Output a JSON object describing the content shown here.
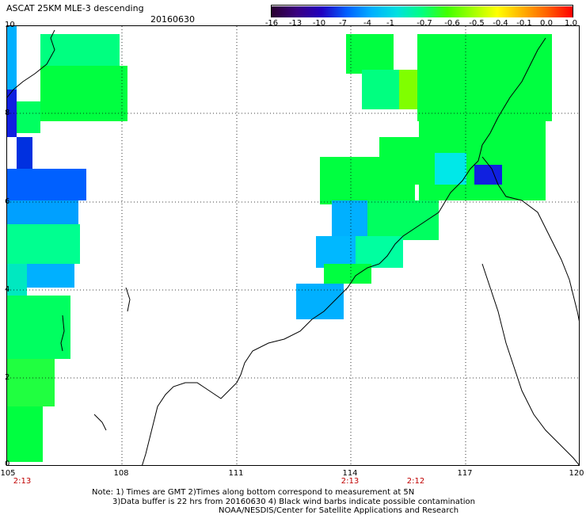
{
  "header": {
    "title": "ASCAT 25KM MLE-3 descending",
    "date": "20160630"
  },
  "colorbar": {
    "labels": [
      "-16",
      "-13",
      "-10",
      "-7",
      "-4",
      "-1",
      "-0.7",
      "-0.6",
      "-0.5",
      "-0.4",
      "-0.1",
      "0.0",
      "1.0"
    ],
    "colors": [
      "#2a0030",
      "#3a0080",
      "#2000c0",
      "#0060ff",
      "#00b0ff",
      "#00e0e0",
      "#00ff80",
      "#40ff00",
      "#a0ff00",
      "#ffff00",
      "#ffb000",
      "#ff6000",
      "#ff0000"
    ]
  },
  "axes": {
    "lat_ticks": [
      "10",
      "8",
      "6",
      "4",
      "2",
      "0"
    ],
    "lon_ticks": [
      "105",
      "108",
      "111",
      "114",
      "117",
      "120"
    ]
  },
  "pass_times": [
    "2:13",
    "2:13",
    "2:12"
  ],
  "notes": {
    "line1": "Note: 1) Times are GMT 2)Times along bottom correspond to measurement at 5N",
    "line2": "3)Data buffer is 22 hrs from 20160630 4) Black wind barbs indicate possible contamination",
    "line3": "NOAA/NESDIS/Center for Satellite Applications and Research"
  },
  "palette": {
    "green": "#00ff40",
    "green_light": "#30ff30",
    "cyan_green": "#00ffa0",
    "cyan": "#00e8e8",
    "sky": "#00b0ff",
    "blue": "#0050ff",
    "deep_blue": "#1020e0",
    "yellow_green": "#80ff00"
  }
}
